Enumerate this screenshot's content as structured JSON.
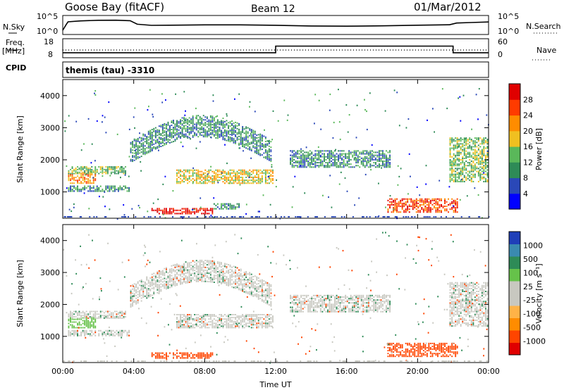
{
  "header": {
    "station": "Goose Bay (fitACF)",
    "beam": "Beam 12",
    "date": "01/Mar/2012"
  },
  "left_labels": {
    "nsky": "N.Sky",
    "freq_line1": "Freq.",
    "freq_line2": "[MHz]",
    "cpid": "CPID"
  },
  "right_labels": {
    "nsearch": "N.Search",
    "nave": "Nave"
  },
  "cpid_text": "themis (tau) -3310",
  "colors": {
    "velocity_grey": "#c8c8c0",
    "power_scale": [
      "#0000ff",
      "#2a48b8",
      "#2e8b57",
      "#5ab85a",
      "#f0c020",
      "#ff8c00",
      "#ff3b00",
      "#e00000"
    ],
    "velocity_scale": [
      "#e00000",
      "#ff4500",
      "#ff8c00",
      "#ffb347",
      "#c8c8c0",
      "#c8c8c0",
      "#66c24a",
      "#2e8b57",
      "#3a8ab0",
      "#1f3fb8"
    ]
  },
  "chart_data": [
    {
      "type": "line",
      "name": "noise",
      "series": [
        {
          "name": "N.Sky",
          "x": [
            0,
            0.2,
            0.3,
            1,
            2,
            3,
            3.8,
            4.2,
            5,
            6,
            8,
            10,
            12,
            14,
            16,
            18,
            20,
            21.8,
            22.2,
            23,
            24
          ],
          "y": [
            10,
            1800,
            15000,
            22000,
            25000,
            24000,
            23000,
            2000,
            900,
            700,
            600,
            550,
            500,
            450,
            450,
            450,
            500,
            550,
            3000,
            7000,
            9000
          ]
        }
      ],
      "ylabel_left": "N.Sky",
      "ylabel_right": "N.Search",
      "yticks_left": [
        "10^5",
        "10^0"
      ],
      "yticks_right": [
        "10^5",
        "10^0"
      ]
    },
    {
      "type": "line",
      "name": "frequency_nave",
      "series": [
        {
          "name": "Freq.",
          "x": [
            0,
            12,
            12,
            22,
            22,
            24
          ],
          "y": [
            10.3,
            10.3,
            14.6,
            14.6,
            10.3,
            10.3
          ]
        },
        {
          "name": "Nave",
          "x": [
            0,
            24
          ],
          "y": [
            8,
            8
          ]
        }
      ],
      "ylabel_left": "Freq. [MHz]",
      "ylabel_right": "Nave",
      "yticks_left": [
        "18",
        "8"
      ],
      "yticks_right": [
        "60",
        "0"
      ]
    },
    {
      "type": "heatmap",
      "name": "power",
      "ylabel": "Slant Range [km]",
      "yticks": [
        "1000",
        "2000",
        "3000",
        "4000"
      ],
      "ylim": [
        180,
        4500
      ],
      "xlim": [
        0,
        24
      ],
      "colorbar": {
        "label": "Power [dB]",
        "ticks": [
          "4",
          "8",
          "12",
          "16",
          "20",
          "24",
          "28"
        ]
      },
      "regions": [
        {
          "t0": 0.3,
          "t1": 1.9,
          "r0": 1250,
          "r1": 1600,
          "level": 20
        },
        {
          "t0": 0.3,
          "t1": 3.8,
          "r0": 1000,
          "r1": 1200,
          "level": 8
        },
        {
          "t0": 0.3,
          "t1": 3.6,
          "r0": 1550,
          "r1": 1800,
          "level": 12
        },
        {
          "t0": 3.8,
          "t1": 11.8,
          "r0": 2100,
          "r1": 2600,
          "level": 8,
          "arc": true
        },
        {
          "t0": 6.4,
          "t1": 11.9,
          "r0": 1250,
          "r1": 1700,
          "level": 16
        },
        {
          "t0": 5,
          "t1": 8.5,
          "r0": 300,
          "r1": 500,
          "level": 28
        },
        {
          "t0": 8.5,
          "t1": 10.0,
          "r0": 450,
          "r1": 650,
          "level": 8
        },
        {
          "t0": 12.8,
          "t1": 18.5,
          "r0": 1750,
          "r1": 2300,
          "level": 8
        },
        {
          "t0": 18.3,
          "t1": 22.3,
          "r0": 350,
          "r1": 800,
          "level": 24
        },
        {
          "t0": 21.8,
          "t1": 24,
          "r0": 1300,
          "r1": 2700,
          "level": 12
        }
      ]
    },
    {
      "type": "heatmap",
      "name": "velocity",
      "ylabel": "Slant Range [km]",
      "xlabel": "Time UT",
      "yticks": [
        "1000",
        "2000",
        "3000",
        "4000"
      ],
      "xticks": [
        "00:00",
        "04:00",
        "08:00",
        "12:00",
        "16:00",
        "20:00",
        "00:00"
      ],
      "ylim": [
        180,
        4500
      ],
      "xlim": [
        0,
        24
      ],
      "colorbar": {
        "label": "Velocity [m s⁻¹]",
        "ticks": [
          "1000",
          "500",
          "100",
          "25",
          "-25",
          "-100",
          "-500",
          "-1000"
        ]
      },
      "regions": [
        {
          "t0": 0.3,
          "t1": 3.6,
          "r0": 1550,
          "r1": 1800,
          "level": -25
        },
        {
          "t0": 0.3,
          "t1": 1.9,
          "r0": 1250,
          "r1": 1600,
          "level": 100
        },
        {
          "t0": 0.3,
          "t1": 3.8,
          "r0": 1000,
          "r1": 1200,
          "level": -25
        },
        {
          "t0": 3.8,
          "t1": 11.8,
          "r0": 2100,
          "r1": 2600,
          "level": 0,
          "arc": true
        },
        {
          "t0": 6.4,
          "t1": 11.9,
          "r0": 1250,
          "r1": 1700,
          "level": 0
        },
        {
          "t0": 5,
          "t1": 8.5,
          "r0": 300,
          "r1": 500,
          "level": -500
        },
        {
          "t0": 12.8,
          "t1": 18.5,
          "r0": 1750,
          "r1": 2300,
          "level": 0
        },
        {
          "t0": 18.3,
          "t1": 22.3,
          "r0": 350,
          "r1": 800,
          "level": -300
        },
        {
          "t0": 21.8,
          "t1": 24,
          "r0": 1300,
          "r1": 2700,
          "level": 0
        }
      ]
    }
  ]
}
